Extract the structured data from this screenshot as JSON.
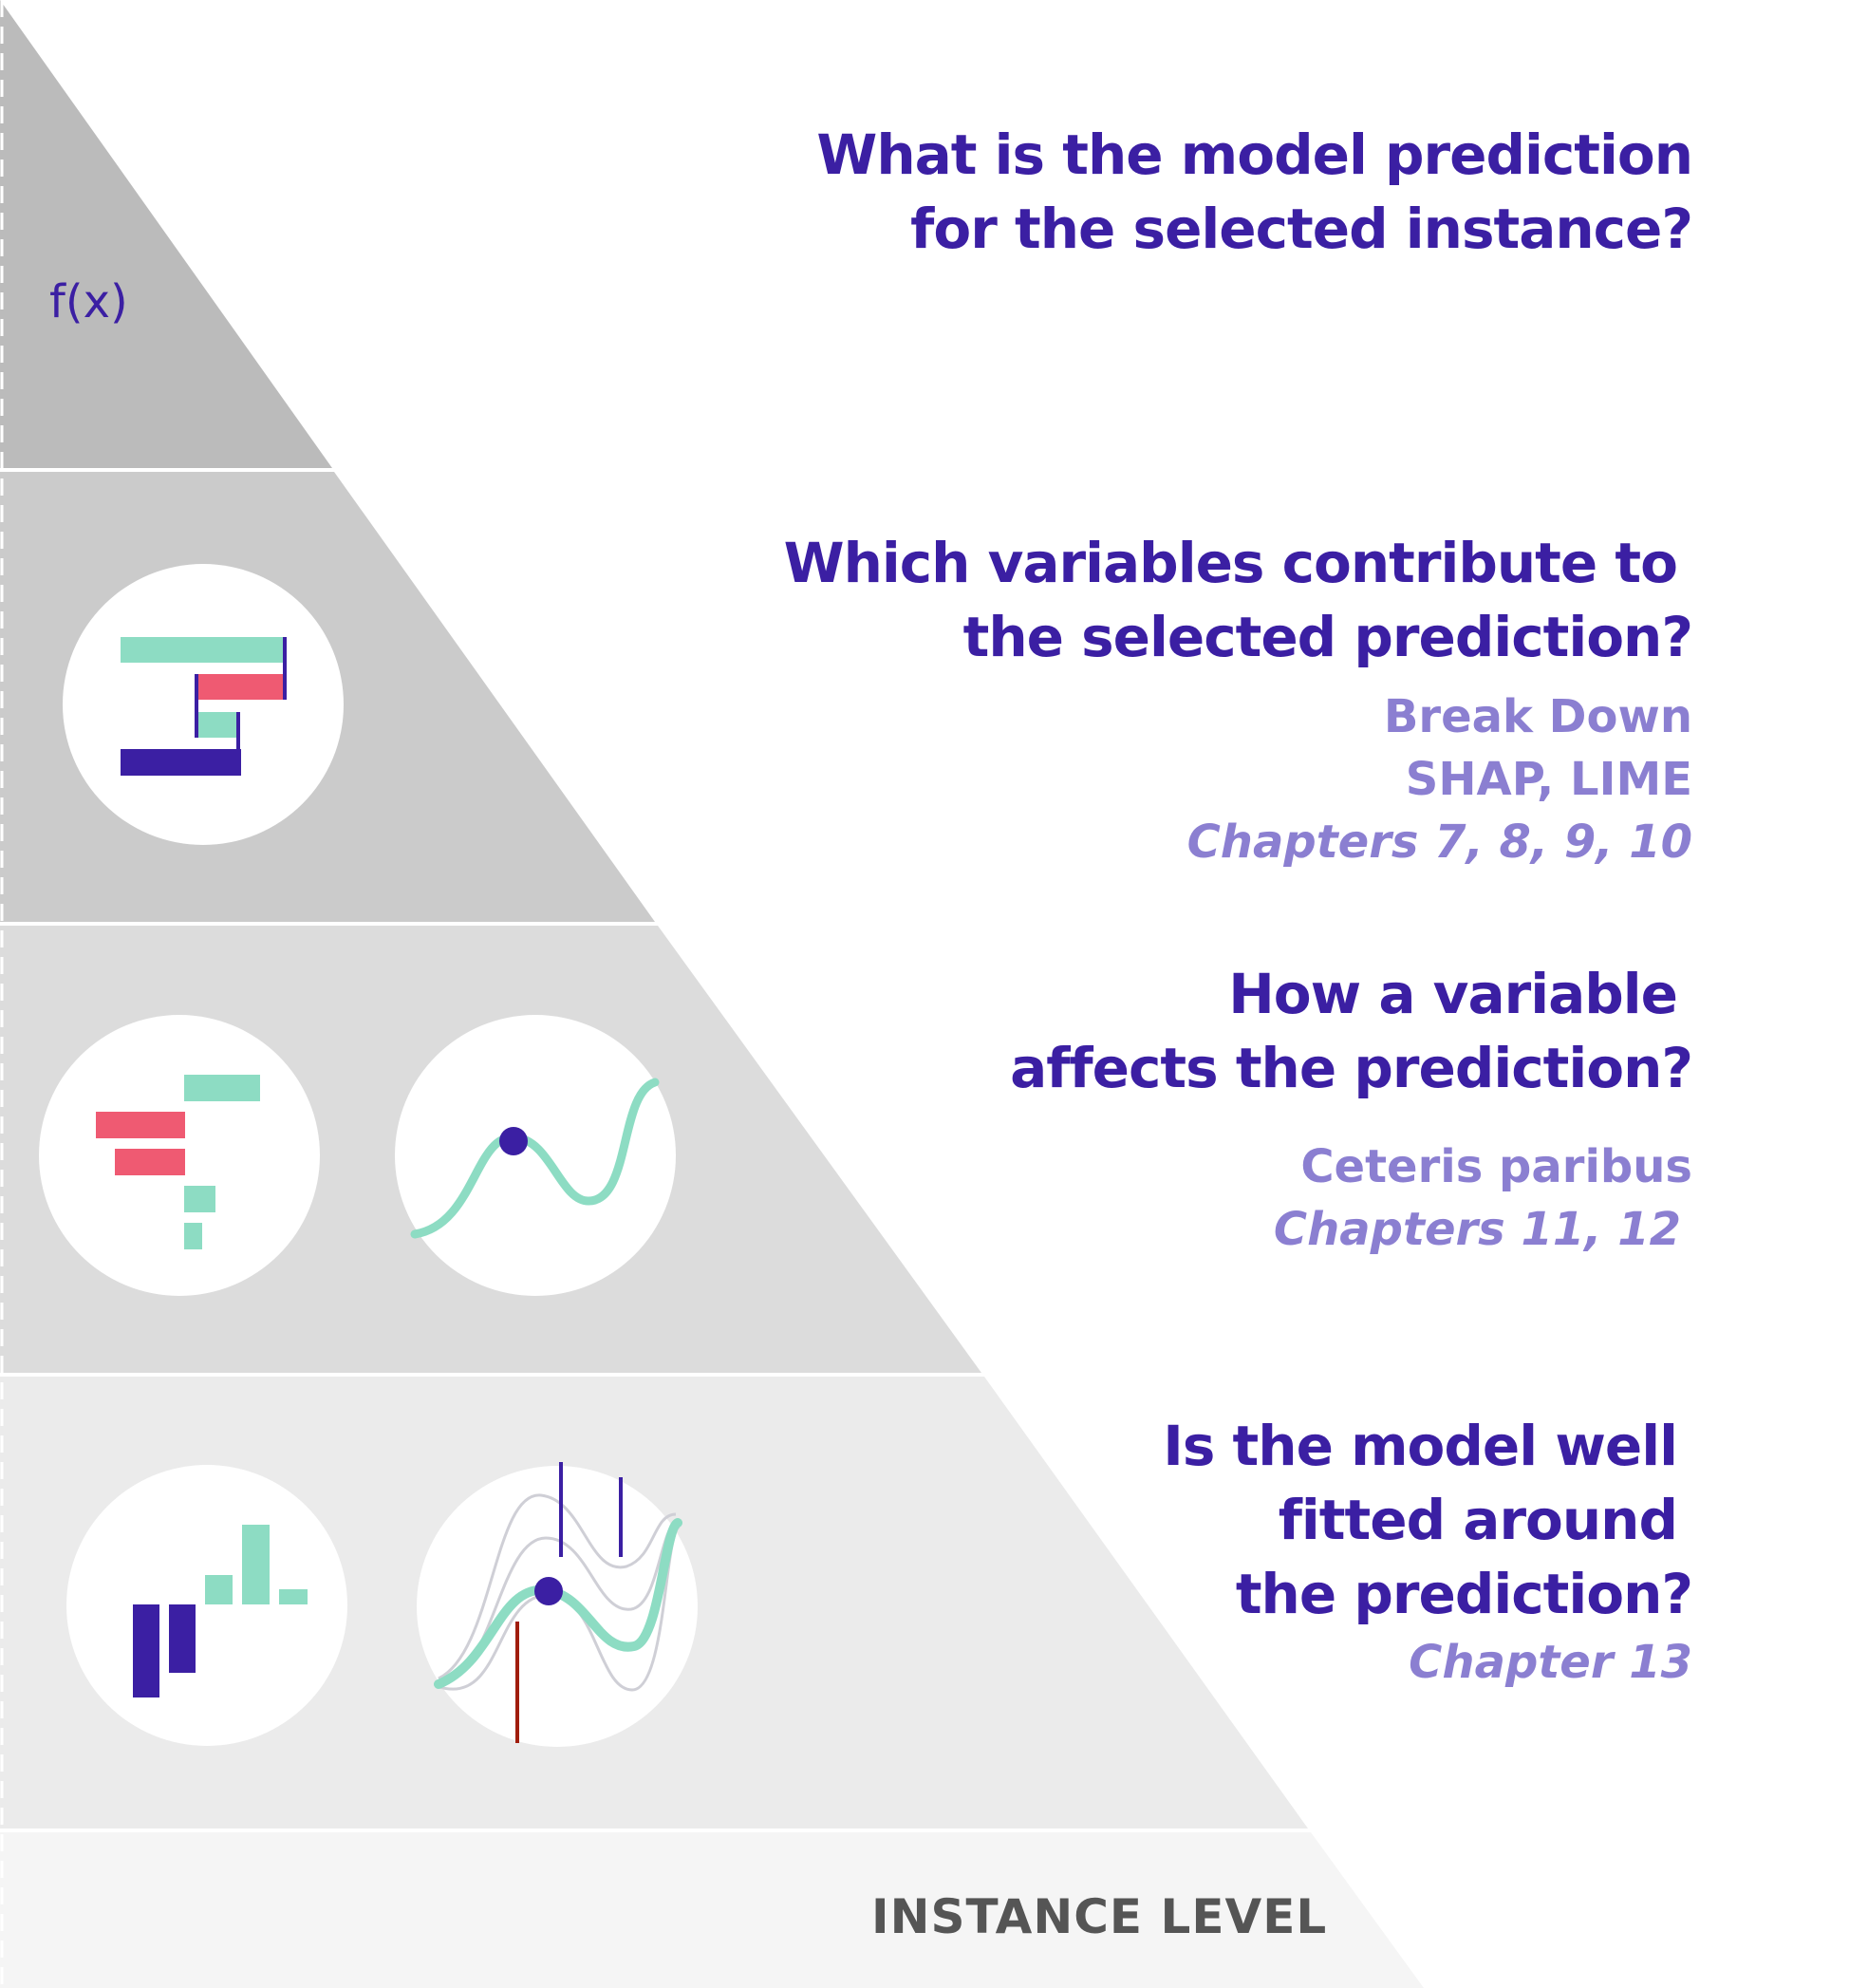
{
  "formula": "f(x)",
  "levels": [
    {
      "question": [
        "What is the model prediction",
        "for the selected instance?"
      ],
      "methods": [],
      "chapters": ""
    },
    {
      "question": [
        "Which variables contribute to",
        "the selected prediction?"
      ],
      "methods": [
        "Break Down",
        "SHAP, LIME"
      ],
      "chapters": "Chapters 7, 8, 9, 10"
    },
    {
      "question": [
        "How a variable",
        "affects the prediction?"
      ],
      "methods": [
        "Ceteris paribus"
      ],
      "chapters": "Chapters 11, 12"
    },
    {
      "question": [
        "Is the model well",
        "fitted around",
        "the prediction?"
      ],
      "methods": [],
      "chapters": "Chapter 13"
    }
  ],
  "footer": "INSTANCE LEVEL",
  "colors": {
    "title": "#3b1fa3",
    "subtitle": "#8b7fd1",
    "teal": "#8ddcc3",
    "red": "#ef5a72",
    "navy": "#3b1fa3",
    "dark_red": "#a01d0d"
  }
}
